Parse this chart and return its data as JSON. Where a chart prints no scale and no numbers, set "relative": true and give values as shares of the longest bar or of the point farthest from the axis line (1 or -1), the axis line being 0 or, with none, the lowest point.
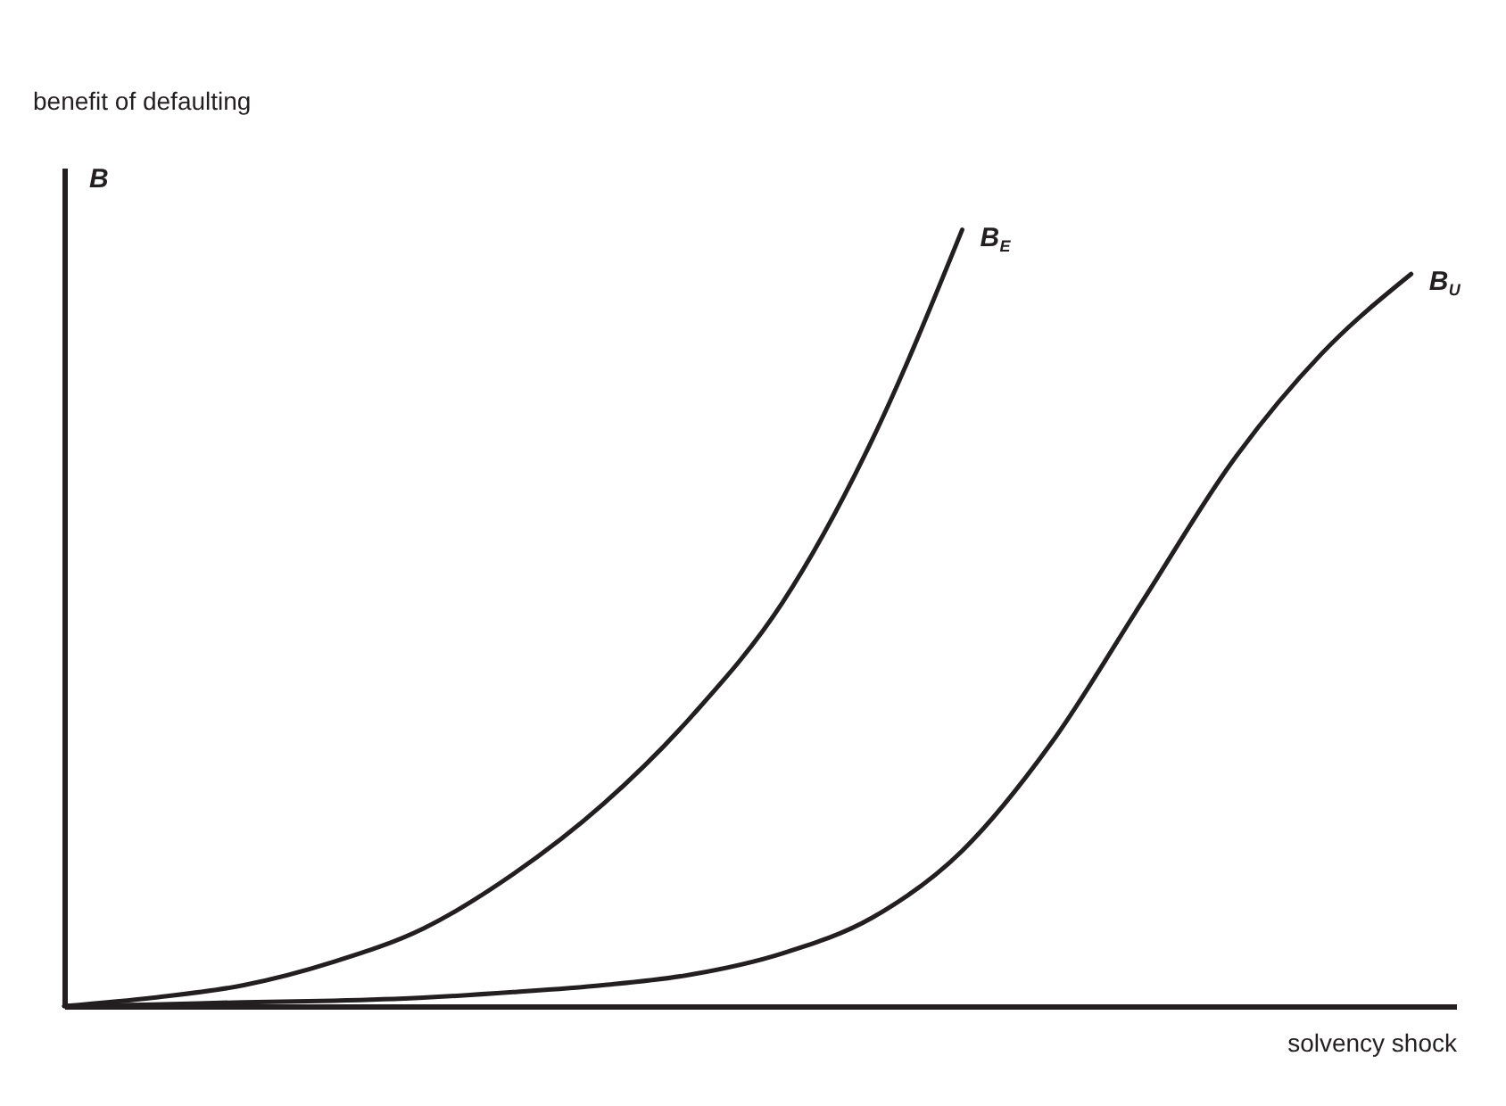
{
  "chart_data": {
    "type": "line",
    "relative": true,
    "xlabel": "solvency shock",
    "ylabel": "benefit of defaulting",
    "annotations": [
      "B"
    ],
    "categories": [
      null,
      null,
      null,
      null,
      null,
      null,
      null,
      null,
      null,
      null,
      null,
      null,
      null,
      null,
      null,
      null
    ],
    "series": [
      {
        "name": "B$_{E}$",
        "color": "#231f20",
        "values": [
          0,
          0.011,
          0.027,
          0.057,
          0.1,
          0.17,
          0.26,
          0.375,
          0.52,
          0.73,
          1.0,
          null,
          null,
          null,
          null,
          null
        ]
      },
      {
        "name": "B$_{U}$",
        "color": "#231f20",
        "values": [
          0,
          0.002,
          0.005,
          0.007,
          0.011,
          0.018,
          0.027,
          0.041,
          0.068,
          0.114,
          0.2,
          0.34,
          0.52,
          0.7,
          0.84,
          0.943
        ]
      }
    ],
    "grid": false,
    "legend": false,
    "marker": "none",
    "line_style": "solid",
    "tick_labels": false
  }
}
